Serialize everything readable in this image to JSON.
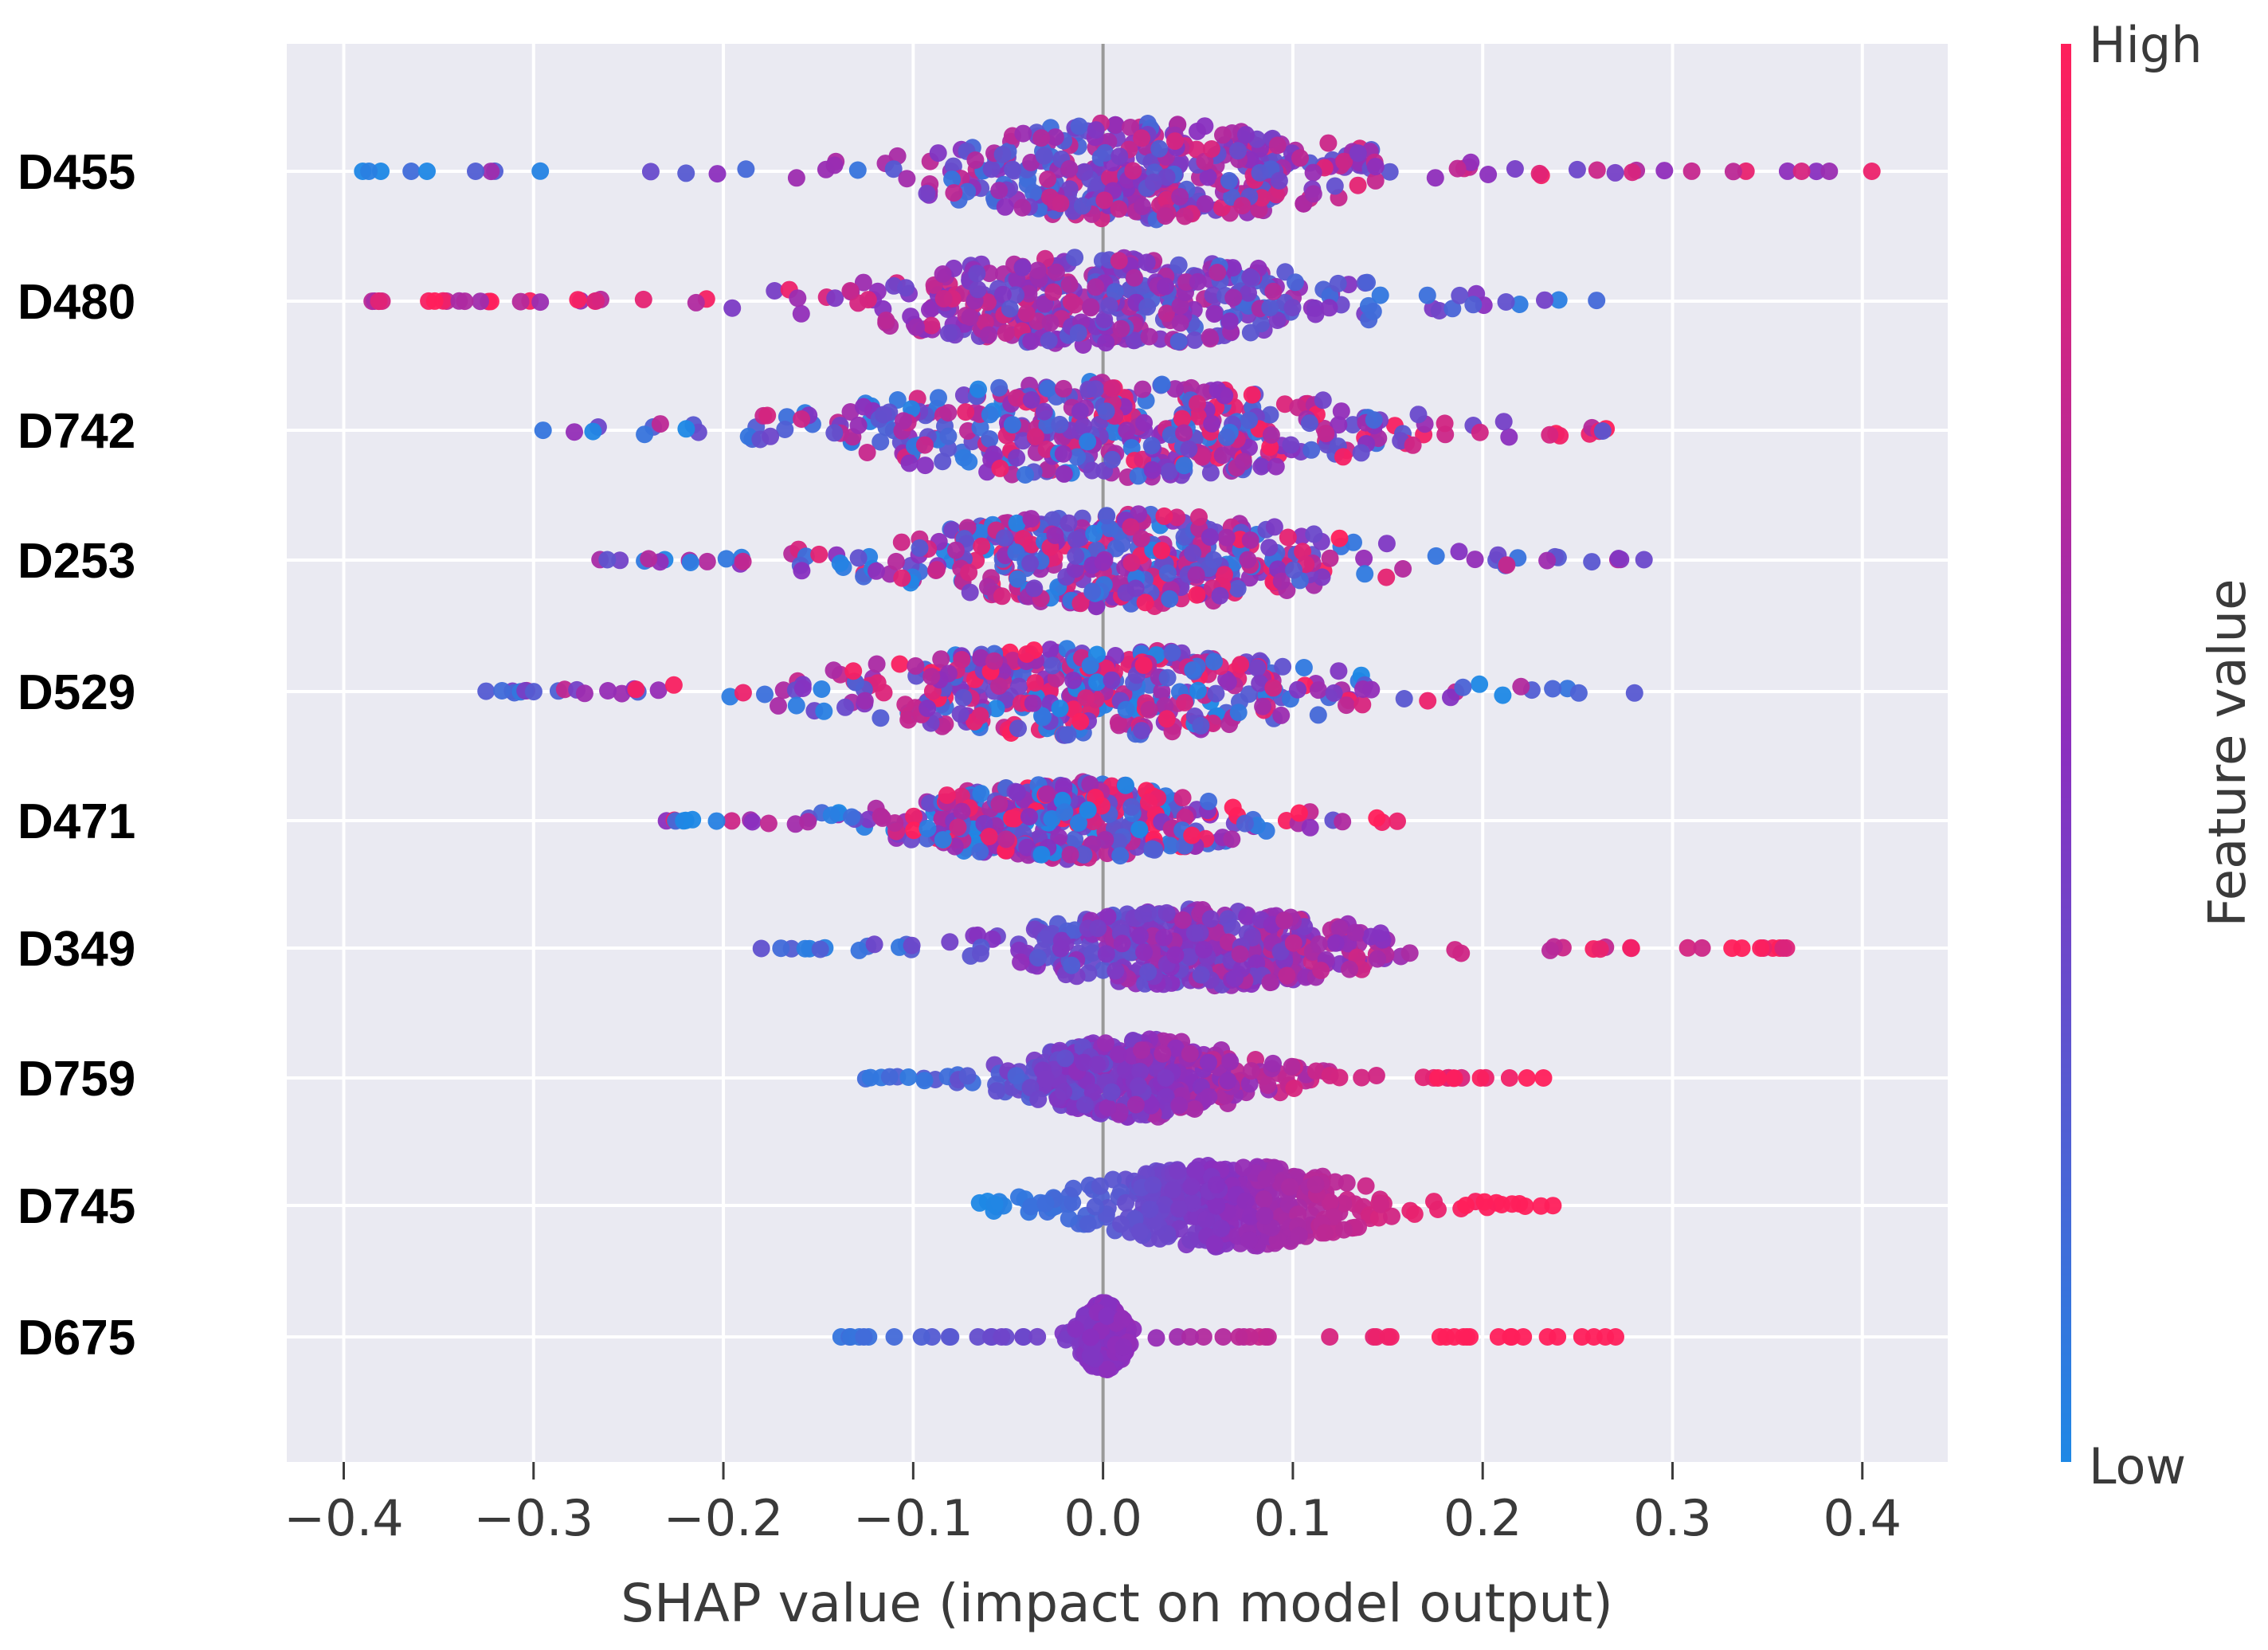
{
  "chart_data": {
    "type": "scatter",
    "subtype": "shap-beeswarm",
    "title": "",
    "xlabel": "SHAP value (impact on model output)",
    "ylabel": "",
    "xlim": [
      -0.43,
      0.445
    ],
    "xticks": [
      -0.4,
      -0.3,
      -0.2,
      -0.1,
      0.0,
      0.1,
      0.2,
      0.3,
      0.4
    ],
    "xtick_labels": [
      "−0.4",
      "−0.3",
      "−0.2",
      "−0.1",
      "0.0",
      "0.1",
      "0.2",
      "0.3",
      "0.4"
    ],
    "grid": true,
    "colorbar": {
      "title": "Feature value",
      "high_label": "High",
      "low_label": "Low",
      "high_color": "#ff1f5b",
      "low_color": "#1e88e5"
    },
    "features": [
      {
        "name": "D455",
        "min": -0.39,
        "max": 0.405,
        "core": [
          -0.16,
          0.2
        ],
        "trend": 0.45,
        "spread": 1.0
      },
      {
        "name": "D480",
        "min": -0.385,
        "max": 0.26,
        "core": [
          -0.2,
          0.2
        ],
        "trend": -0.55,
        "spread": 0.9
      },
      {
        "name": "D742",
        "min": -0.295,
        "max": 0.265,
        "core": [
          -0.22,
          0.22
        ],
        "trend": 0.25,
        "spread": 1.0
      },
      {
        "name": "D253",
        "min": -0.265,
        "max": 0.285,
        "core": [
          -0.18,
          0.2
        ],
        "trend": 0.2,
        "spread": 0.95
      },
      {
        "name": "D529",
        "min": -0.325,
        "max": 0.28,
        "core": [
          -0.22,
          0.2
        ],
        "trend": -0.15,
        "spread": 0.9
      },
      {
        "name": "D471",
        "min": -0.23,
        "max": 0.155,
        "core": [
          -0.16,
          0.12
        ],
        "trend": 0.1,
        "spread": 0.8
      },
      {
        "name": "D349",
        "min": -0.18,
        "max": 0.36,
        "core": [
          -0.1,
          0.2
        ],
        "trend": 0.7,
        "spread": 0.8
      },
      {
        "name": "D759",
        "min": -0.125,
        "max": 0.232,
        "core": [
          -0.08,
          0.12
        ],
        "trend": 0.8,
        "spread": 0.8
      },
      {
        "name": "D745",
        "min": -0.065,
        "max": 0.237,
        "core": [
          -0.05,
          0.18
        ],
        "trend": 0.95,
        "spread": 0.85
      },
      {
        "name": "D675",
        "min": -0.138,
        "max": 0.27,
        "core": [
          -0.02,
          0.02
        ],
        "trend": 0.95,
        "spread": 0.7
      }
    ]
  }
}
